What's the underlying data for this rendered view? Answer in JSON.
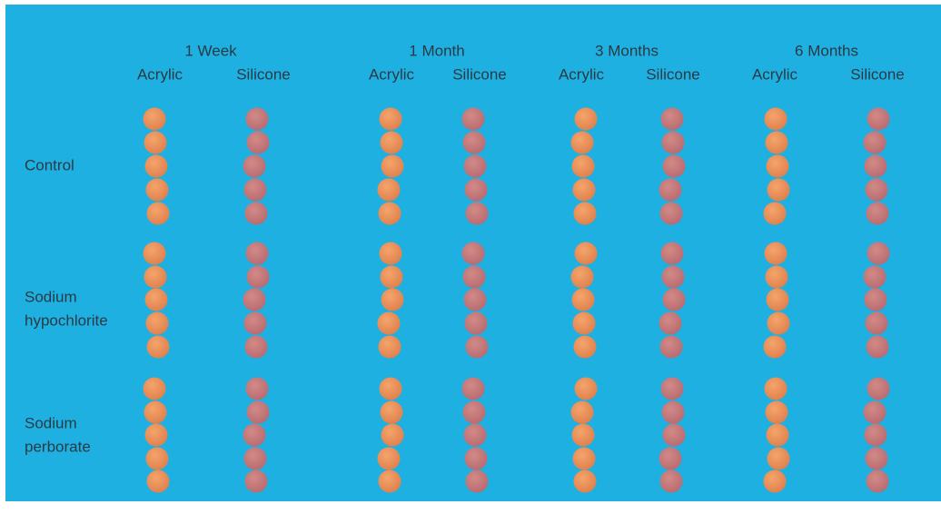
{
  "header": {
    "groups": [
      {
        "title": "1 Week",
        "materials": [
          "Acrylic",
          "Silicone"
        ]
      },
      {
        "title": "1 Month",
        "materials": [
          "Acrylic",
          "Silicone"
        ]
      },
      {
        "title": "3 Months",
        "materials": [
          "Acrylic",
          "Silicone"
        ]
      },
      {
        "title": "6 Months",
        "materials": [
          "Acrylic",
          "Silicone"
        ]
      }
    ]
  },
  "rows": [
    {
      "label": [
        "Control"
      ]
    },
    {
      "label": [
        "Sodium",
        "hypochlorite"
      ]
    },
    {
      "label": [
        "Sodium",
        "perborate"
      ]
    }
  ]
}
